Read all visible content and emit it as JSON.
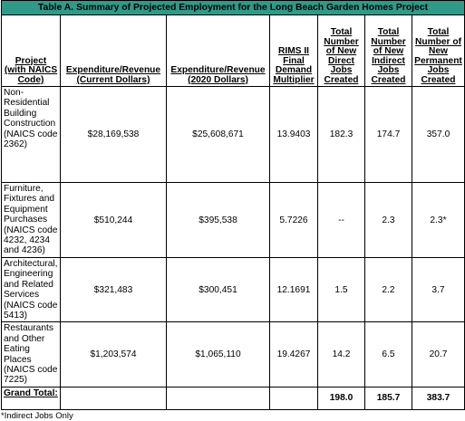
{
  "title": "Table A. Summary of Projected Employment for the Long Beach Garden Homes Project",
  "headers": [
    "Project (with NAICS Code)",
    "Expenditure/Revenue (Current Dollars)",
    "Expenditure/Revenue (2020 Dollars)",
    "RIMS II Final Demand Multiplier",
    "Total Number of New Direct Jobs Created",
    "Total Number of New Indirect Jobs Created",
    "Total Number of New Permanent Jobs Created"
  ],
  "rows": [
    [
      "Non-Residential Building Construction (NAICS code 2362)",
      "$28,169,538",
      "$25,608,671",
      "13.9403",
      "182.3",
      "174.7",
      "357.0"
    ],
    [
      "Furniture, Fixtures and Equipment Purchases (NAICS code 4232, 4234 and 4236)",
      "$510,244",
      "$395,538",
      "5.7226",
      "--",
      "2.3",
      "2.3*"
    ],
    [
      "Architectural, Engineering and Related Services (NAICS code 5413)",
      "$321,483",
      "$300,451",
      "12.1691",
      "1.5",
      "2.2",
      "3.7"
    ],
    [
      "Restaurants and Other Eating Places (NAICS code 7225)",
      "$1,203,574",
      "$1,065,110",
      "19.4267",
      "14.2",
      "6.5",
      "20.7"
    ]
  ],
  "total": [
    "Grand Total:",
    "",
    "",
    "",
    "198.0",
    "185.7",
    "383.7"
  ],
  "footnote": "*Indirect Jobs Only"
}
